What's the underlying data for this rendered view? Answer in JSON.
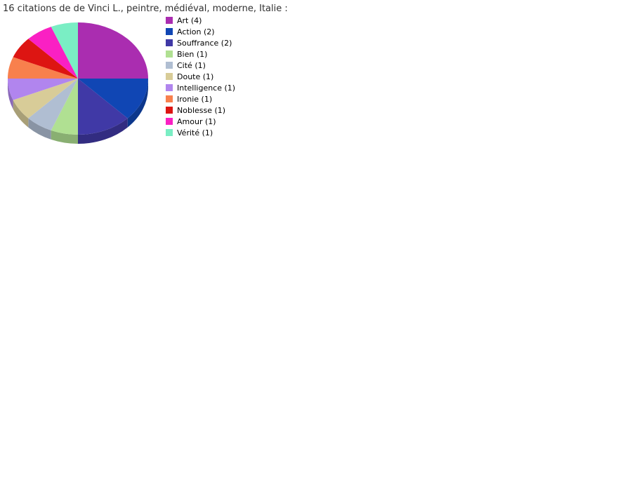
{
  "page": {
    "background": "#ffffff"
  },
  "chart_data": {
    "type": "pie",
    "style": "3d",
    "title": "16 citations de de Vinci L., peintre, médiéval, moderne, Italie :",
    "total": 16,
    "start_angle_deg": 0,
    "direction": "clockwise",
    "legend_position": "right",
    "grid": false,
    "series": [
      {
        "label": "Art",
        "value": 4,
        "color": "#aa2db0",
        "legend_text": "Art (4)"
      },
      {
        "label": "Action",
        "value": 2,
        "color": "#1046b4",
        "legend_text": "Action (2)"
      },
      {
        "label": "Souffrance",
        "value": 2,
        "color": "#4039a6",
        "legend_text": "Souffrance (2)"
      },
      {
        "label": "Bien",
        "value": 1,
        "color": "#b0e092",
        "legend_text": "Bien (1)"
      },
      {
        "label": "Cité",
        "value": 1,
        "color": "#b0bed2",
        "legend_text": "Cité (1)"
      },
      {
        "label": "Doute",
        "value": 1,
        "color": "#d8cc98",
        "legend_text": "Doute (1)"
      },
      {
        "label": "Intelligence",
        "value": 1,
        "color": "#b185ee",
        "legend_text": "Intelligence (1)"
      },
      {
        "label": "Ironie",
        "value": 1,
        "color": "#f8804d",
        "legend_text": "Ironie (1)"
      },
      {
        "label": "Noblesse",
        "value": 1,
        "color": "#dd1512",
        "legend_text": "Noblesse (1)"
      },
      {
        "label": "Amour",
        "value": 1,
        "color": "#fa20c3",
        "legend_text": "Amour (1)"
      },
      {
        "label": "Vérité",
        "value": 1,
        "color": "#7aeec4",
        "legend_text": "Vérité (1)"
      }
    ]
  }
}
